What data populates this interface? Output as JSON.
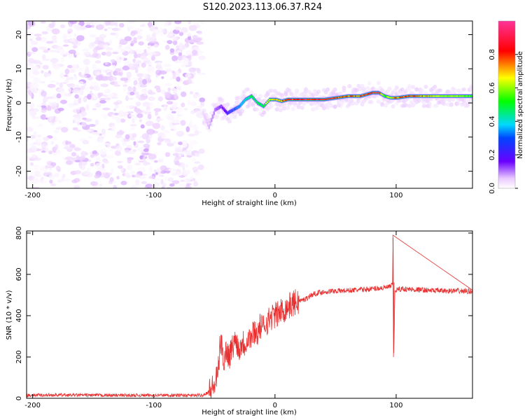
{
  "figure": {
    "title": "S120.2023.113.06.37.R24"
  },
  "chart_data": [
    {
      "type": "heatmap",
      "title": "S120.2023.113.06.37.R24",
      "xlabel": "Height of straight line (km)",
      "ylabel": "Frequency (Hz)",
      "xlim": [
        -205,
        163
      ],
      "ylim": [
        -25,
        24
      ],
      "xticks": [
        -200,
        -100,
        0,
        100
      ],
      "yticks": [
        -20,
        -10,
        0,
        10,
        20
      ],
      "colormap": [
        "#ffffff",
        "#e9c8ff",
        "#6a00ff",
        "#00d9ff",
        "#00ff00",
        "#ffff00",
        "#ff0000",
        "#ff3399"
      ],
      "colorbar": {
        "label": "Normalized spectral amplitude",
        "range": [
          0,
          1
        ],
        "ticks": [
          0.0,
          0.2,
          0.4,
          0.6,
          0.8
        ]
      },
      "noise_region": {
        "x": [
          -205,
          -60
        ],
        "y": [
          -25,
          24
        ],
        "amplitude": 0.1
      },
      "ridge": {
        "x": [
          -60,
          -55,
          -50,
          -45,
          -40,
          -35,
          -30,
          -25,
          -20,
          -15,
          -10,
          -5,
          0,
          5,
          10,
          20,
          40,
          60,
          70,
          80,
          85,
          90,
          95,
          100,
          110,
          130,
          150,
          163
        ],
        "frequency": [
          -3,
          -7,
          -2,
          -1,
          -3,
          -2,
          -1,
          1,
          2,
          0,
          -1,
          1,
          1,
          0.5,
          1,
          1,
          1,
          2,
          2,
          3,
          3,
          2,
          1.5,
          1.5,
          2,
          2,
          2,
          2
        ],
        "amplitude": [
          0.1,
          0.15,
          0.2,
          0.25,
          0.3,
          0.35,
          0.4,
          0.45,
          0.55,
          0.5,
          0.6,
          0.7,
          0.75,
          0.8,
          0.85,
          0.9,
          0.9,
          0.8,
          0.85,
          0.9,
          0.9,
          0.6,
          0.75,
          0.8,
          0.85,
          0.7,
          0.65,
          0.6
        ]
      }
    },
    {
      "type": "line",
      "xlabel": "Height of straight line (km)",
      "ylabel": "SNR (10 * v/v)",
      "xlim": [
        -205,
        163
      ],
      "ylim": [
        0,
        810
      ],
      "xticks": [
        -200,
        -100,
        0,
        100
      ],
      "yticks": [
        0,
        200,
        400,
        600,
        800
      ],
      "color": "#e83030",
      "series": [
        {
          "x": [
            -205,
            -180,
            -150,
            -120,
            -90,
            -70,
            -60,
            -55,
            -50,
            -47,
            -45,
            -42,
            -40,
            -38,
            -35,
            -32,
            -30,
            -27,
            -25,
            -22,
            -20,
            -17,
            -15,
            -12,
            -10,
            -7,
            -5,
            -2,
            0,
            5,
            10,
            15,
            20,
            25,
            30,
            35,
            40,
            50,
            60,
            70,
            80,
            90,
            95,
            97,
            97.5,
            98,
            99,
            100,
            105,
            110,
            120,
            130,
            140,
            150,
            163
          ],
          "y": [
            15,
            16,
            15,
            14,
            15,
            14,
            15,
            30,
            60,
            120,
            280,
            180,
            240,
            200,
            250,
            290,
            230,
            280,
            260,
            300,
            290,
            330,
            310,
            350,
            340,
            370,
            380,
            400,
            400,
            420,
            440,
            460,
            470,
            480,
            500,
            510,
            515,
            520,
            522,
            525,
            530,
            535,
            540,
            550,
            790,
            200,
            520,
            525,
            530,
            528,
            525,
            522,
            520,
            520,
            518
          ]
        }
      ]
    }
  ]
}
